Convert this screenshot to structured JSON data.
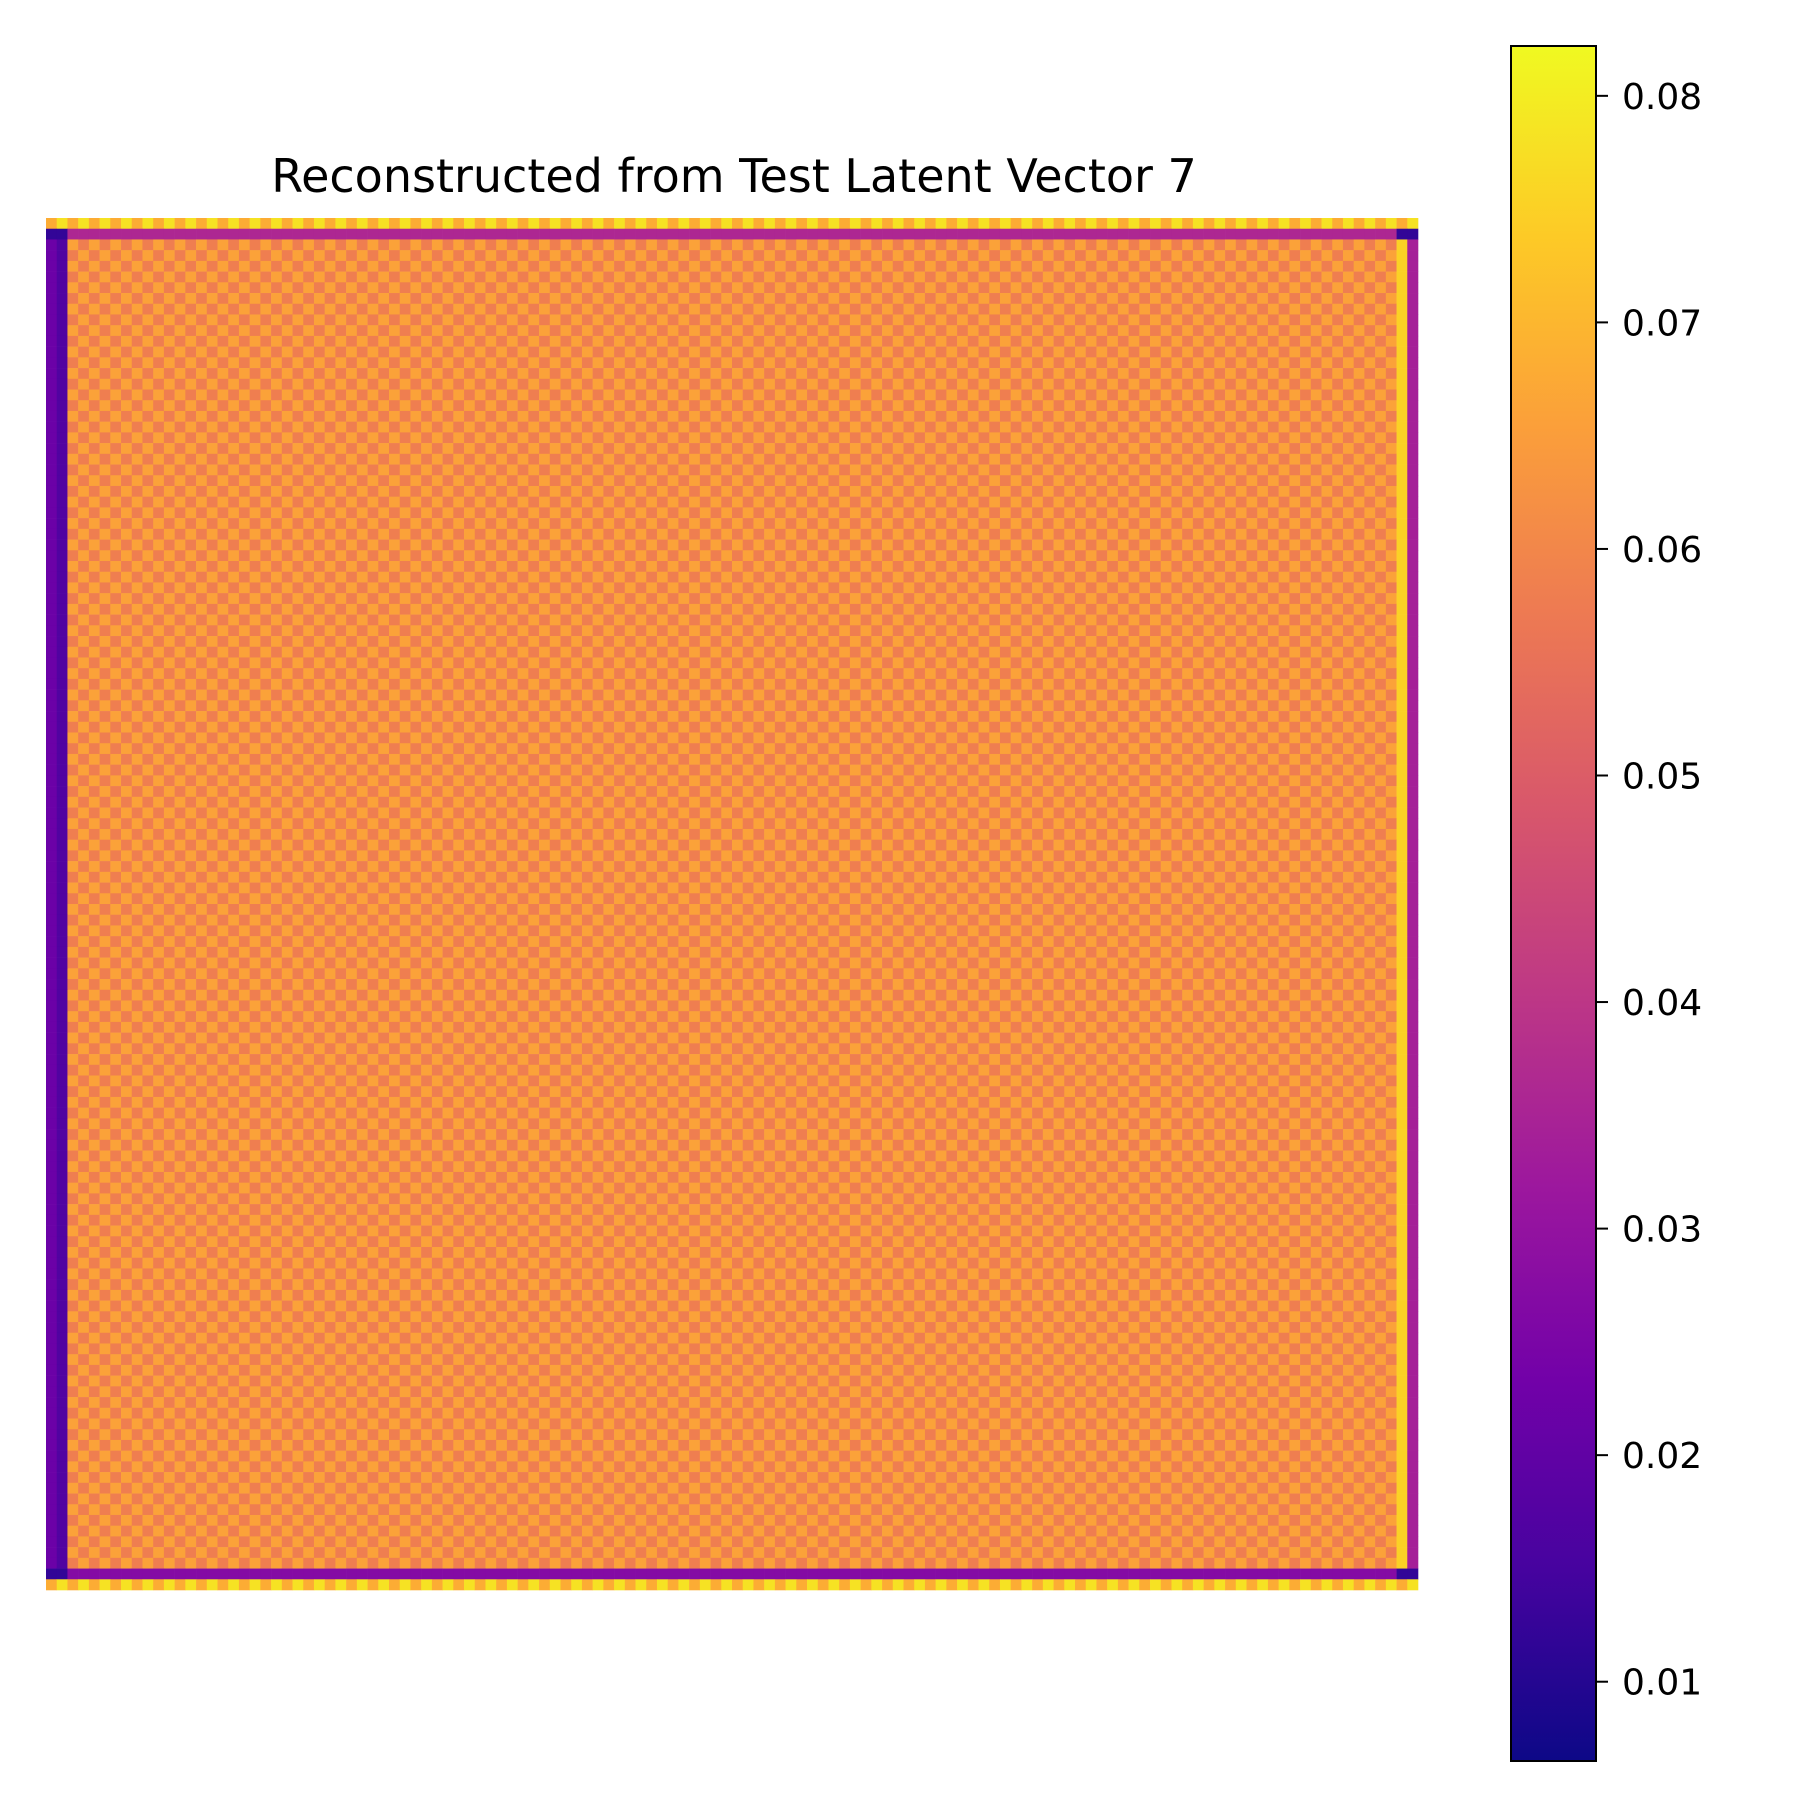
{
  "chart_data": {
    "type": "heatmap",
    "title": "Reconstructed from Test Latent Vector 7",
    "xlabel": "",
    "ylabel": "",
    "axes_visible": false,
    "colormap": "plasma",
    "grid_size": [
      128,
      128
    ],
    "pattern": {
      "interior_values": {
        "checker_high": 0.066,
        "checker_low": 0.058
      },
      "outer_border_alternating": [
        0.068,
        0.078
      ],
      "left_edge_columns": [
        0.022,
        0.017
      ],
      "right_edge_columns": [
        0.075,
        0.034
      ],
      "top_inner_row": 0.036,
      "bottom_inner_row": 0.027,
      "corners": 0.012
    },
    "colorbar": {
      "range": [
        0.0065,
        0.0822
      ],
      "ticks": [
        0.01,
        0.02,
        0.03,
        0.04,
        0.05,
        0.06,
        0.07,
        0.08
      ],
      "tick_labels": [
        "0.01",
        "0.02",
        "0.03",
        "0.04",
        "0.05",
        "0.06",
        "0.07",
        "0.08"
      ]
    },
    "colors": {
      "plasma_stops": [
        "#0d0887",
        "#46039f",
        "#7201a8",
        "#9c179e",
        "#bd3786",
        "#d8576b",
        "#ed7953",
        "#fb9f3a",
        "#fdca26",
        "#f0f921"
      ]
    }
  }
}
